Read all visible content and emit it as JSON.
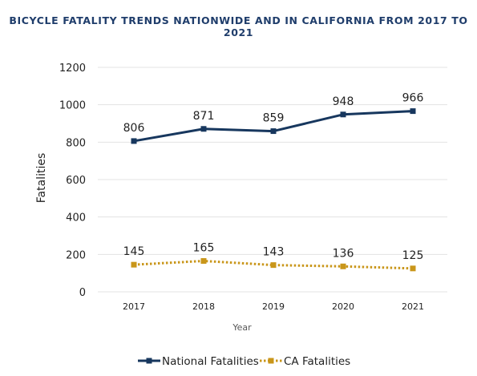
{
  "chart_data": {
    "type": "line",
    "title": "BICYCLE FATALITY TRENDS NATIONWIDE AND IN CALIFORNIA FROM 2017 TO 2021",
    "xlabel": "Year",
    "ylabel": "Fatalities",
    "categories": [
      "2017",
      "2018",
      "2019",
      "2020",
      "2021"
    ],
    "yticks": [
      "0",
      "200",
      "400",
      "600",
      "800",
      "1000",
      "1200"
    ],
    "ylim": [
      0,
      1200
    ],
    "grid": true,
    "legend_position": "bottom",
    "series": [
      {
        "name": "National Fatalities",
        "color": "#17375e",
        "style": "solid",
        "marker": "square",
        "values": [
          806,
          871,
          859,
          948,
          966
        ],
        "labels": [
          "806",
          "871",
          "859",
          "948",
          "966"
        ]
      },
      {
        "name": "CA Fatalities",
        "color": "#c9961a",
        "style": "dotted",
        "marker": "square",
        "values": [
          145,
          165,
          143,
          136,
          125
        ],
        "labels": [
          "145",
          "165",
          "143",
          "136",
          "125"
        ]
      }
    ]
  }
}
